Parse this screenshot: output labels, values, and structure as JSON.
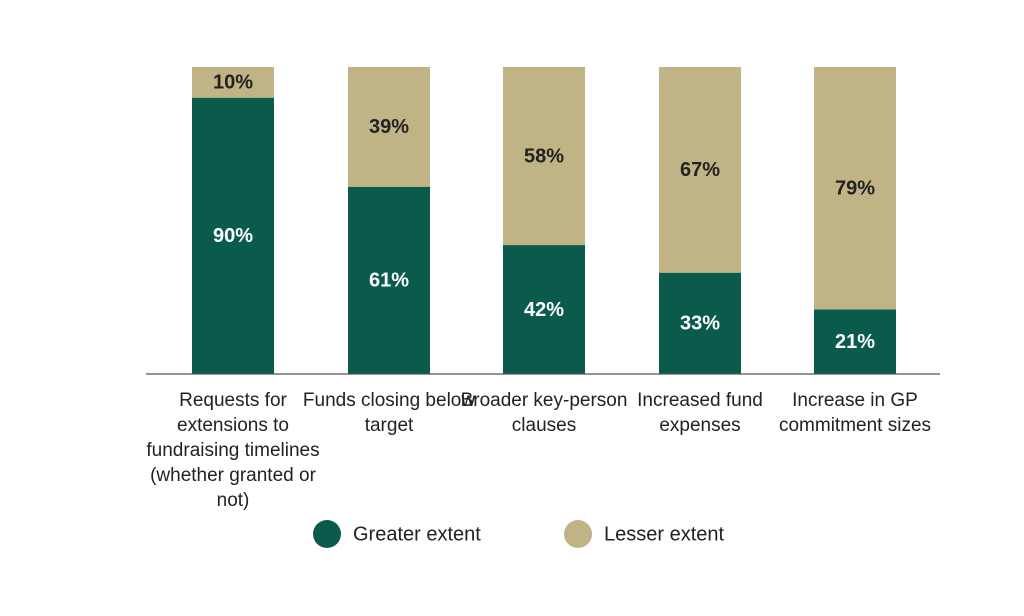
{
  "chart_data": {
    "type": "stacked-bar",
    "categories": [
      "Requests for extensions to fundraising timelines (whether granted or not)",
      "Funds closing below target",
      "Broader key-person clauses",
      "Increased fund expenses",
      "Increase in GP commitment sizes"
    ],
    "series": [
      {
        "name": "Greater extent",
        "color": "#0b5b4c",
        "values": [
          90,
          61,
          42,
          33,
          21
        ],
        "value_labels": [
          "90%",
          "61%",
          "42%",
          "33%",
          "21%"
        ]
      },
      {
        "name": "Lesser extent",
        "color": "#c0b386",
        "values": [
          10,
          39,
          58,
          67,
          79
        ],
        "value_labels": [
          "10%",
          "39%",
          "58%",
          "67%",
          "79%"
        ]
      }
    ],
    "ylim": [
      0,
      100
    ]
  }
}
